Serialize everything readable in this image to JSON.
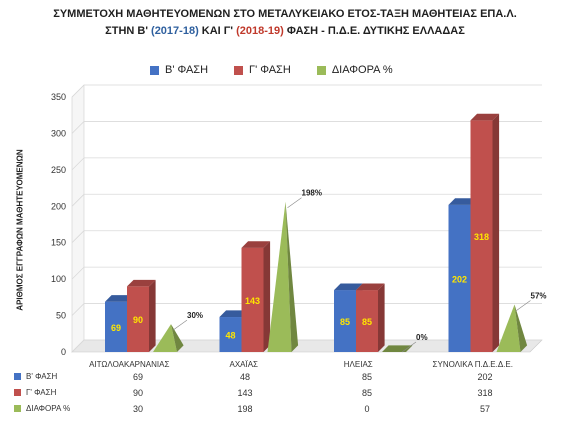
{
  "title": {
    "line1": "ΣΥΜΜΕΤΟΧΗ ΜΑΘΗΤΕΥΟΜΕΝΩΝ ΣΤΟ ΜΕΤΑΛΥΚΕΙΑΚΟ ΕΤΟΣ-ΤΑΞΗ ΜΑΘΗΤΕΙΑΣ ΕΠΑ.Λ.",
    "line2a": "ΣΤΗΝ Β'",
    "line2b": "(2017-18)",
    "line2c": "ΚΑΙ Γ'",
    "line2d": "(2018-19)",
    "line2e": "ΦΑΣΗ - Π.Δ.Ε. ΔΥΤΙΚΗΣ ΕΛΛΑΔΑΣ"
  },
  "colors": {
    "b_phase": "#4472c4",
    "g_phase": "#c0504d",
    "diff": "#9bbb59"
  },
  "chart_data": {
    "type": "bar",
    "ylabel": "ΑΡΙΘΜΟΣ ΕΓΓΡΑΦΩΝ ΜΑΘΗΤΕΥΟΜΕΝΩΝ",
    "ylim": [
      0,
      350
    ],
    "yticks": [
      0,
      50,
      100,
      150,
      200,
      250,
      300,
      350
    ],
    "grid": true,
    "legend": "top",
    "categories": [
      "ΑΙΤΩΛΟΑΚΑΡΝΑΝΙΑΣ",
      "ΑΧΑΪΑΣ",
      "ΗΛΕΙΑΣ",
      "ΣΥΝΟΛΙΚΑ Π.Δ.Ε.Δ.Ε."
    ],
    "series": [
      {
        "name": "Β' ΦΑΣΗ",
        "values": [
          69,
          48,
          85,
          202
        ],
        "labels": [
          "69",
          "48",
          "85",
          "202"
        ]
      },
      {
        "name": "Γ' ΦΑΣΗ",
        "values": [
          90,
          143,
          85,
          318
        ],
        "labels": [
          "90",
          "143",
          "85",
          "318"
        ]
      },
      {
        "name": "ΔΙΑΦΟΡΑ %",
        "values": [
          30,
          198,
          0,
          57
        ],
        "labels": [
          "30%",
          "198%",
          "0%",
          "57%"
        ]
      }
    ],
    "table_rows": [
      [
        "69",
        "48",
        "85",
        "202"
      ],
      [
        "90",
        "143",
        "85",
        "318"
      ],
      [
        "30",
        "198",
        "0",
        "57"
      ]
    ]
  }
}
